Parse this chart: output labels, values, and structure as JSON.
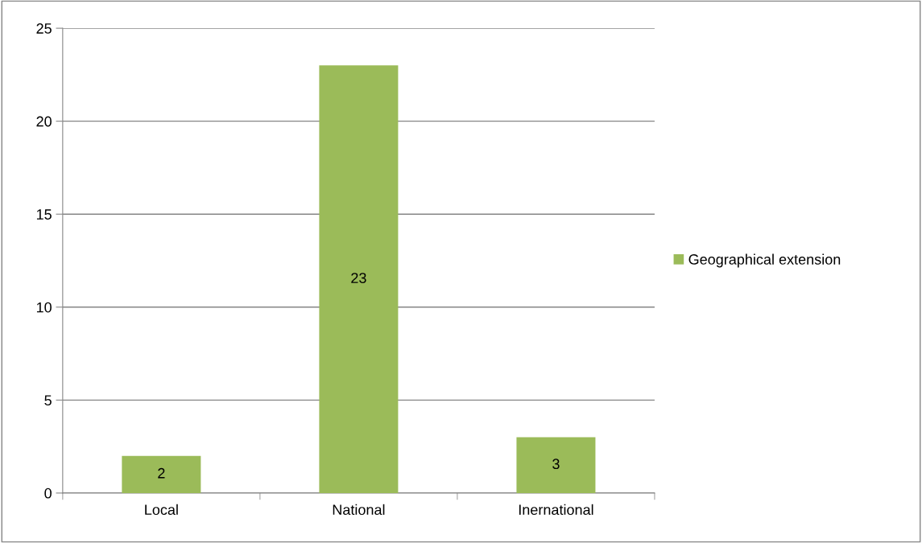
{
  "chart_data": {
    "type": "bar",
    "categories": [
      "Local",
      "National",
      "Inernational"
    ],
    "series": [
      {
        "name": "Geographical extension",
        "color": "#9bbb59",
        "values": [
          2,
          23,
          3
        ]
      }
    ],
    "ylim": [
      0,
      25
    ],
    "yticks": [
      0,
      5,
      10,
      15,
      20,
      25
    ],
    "grid": "y",
    "legend": "right",
    "data_labels": true
  }
}
